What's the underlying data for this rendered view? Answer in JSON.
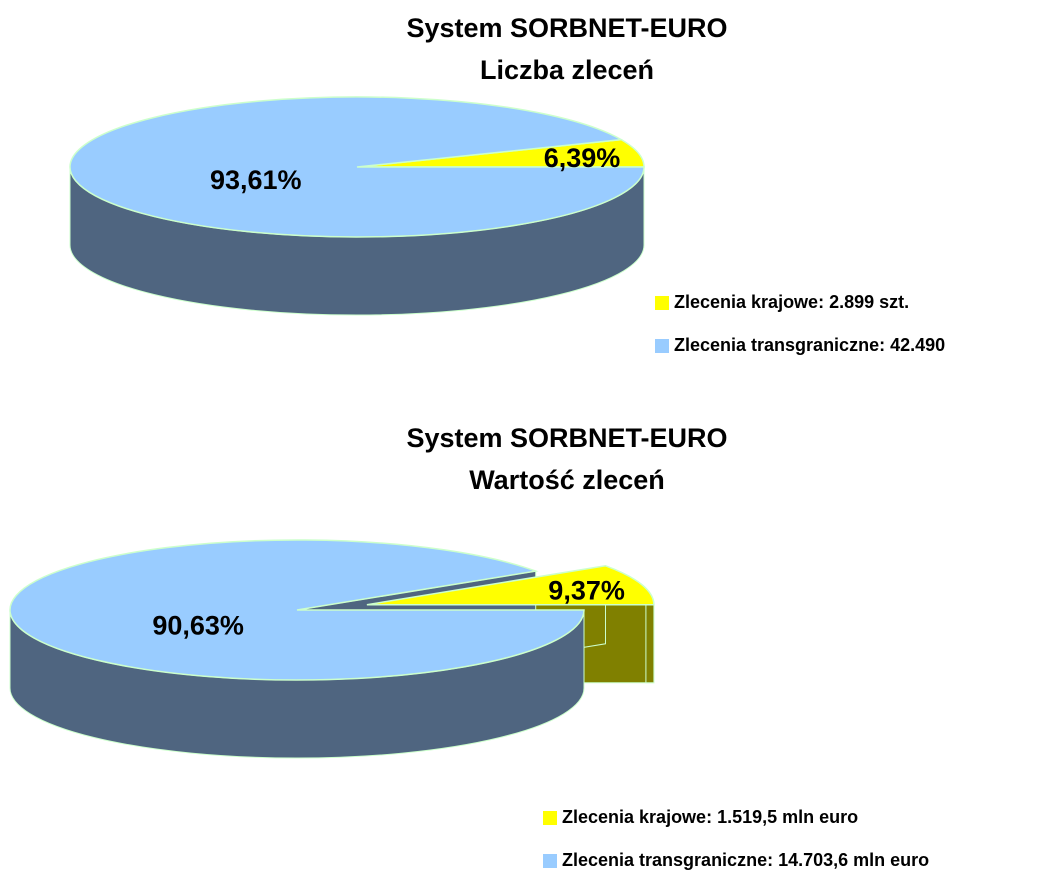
{
  "chart_data": [
    {
      "type": "pie3d",
      "title": [
        "System SORBNET-EURO",
        "Liczba zleceń"
      ],
      "labels": [
        "Zlecenia krajowe: 2.899 szt.",
        "Zlecenia transgraniczne: 42.490"
      ],
      "values": [
        6.39,
        93.61
      ],
      "value_labels": [
        "6,39%",
        "93,61%"
      ],
      "colors": [
        "#ffff00",
        "#99ccff"
      ],
      "side_colors": [
        "#808000",
        "#4f6580"
      ],
      "explode": [
        false,
        false
      ]
    },
    {
      "type": "pie3d",
      "title": [
        "System SORBNET-EURO",
        "Wartość zleceń"
      ],
      "labels": [
        "Zlecenia krajowe: 1.519,5 mln euro",
        "Zlecenia transgraniczne: 14.703,6 mln euro"
      ],
      "values": [
        9.37,
        90.63
      ],
      "value_labels": [
        "9,37%",
        "90,63%"
      ],
      "colors": [
        "#ffff00",
        "#99ccff"
      ],
      "side_colors": [
        "#808000",
        "#4f6580"
      ],
      "explode": [
        true,
        false
      ]
    }
  ]
}
